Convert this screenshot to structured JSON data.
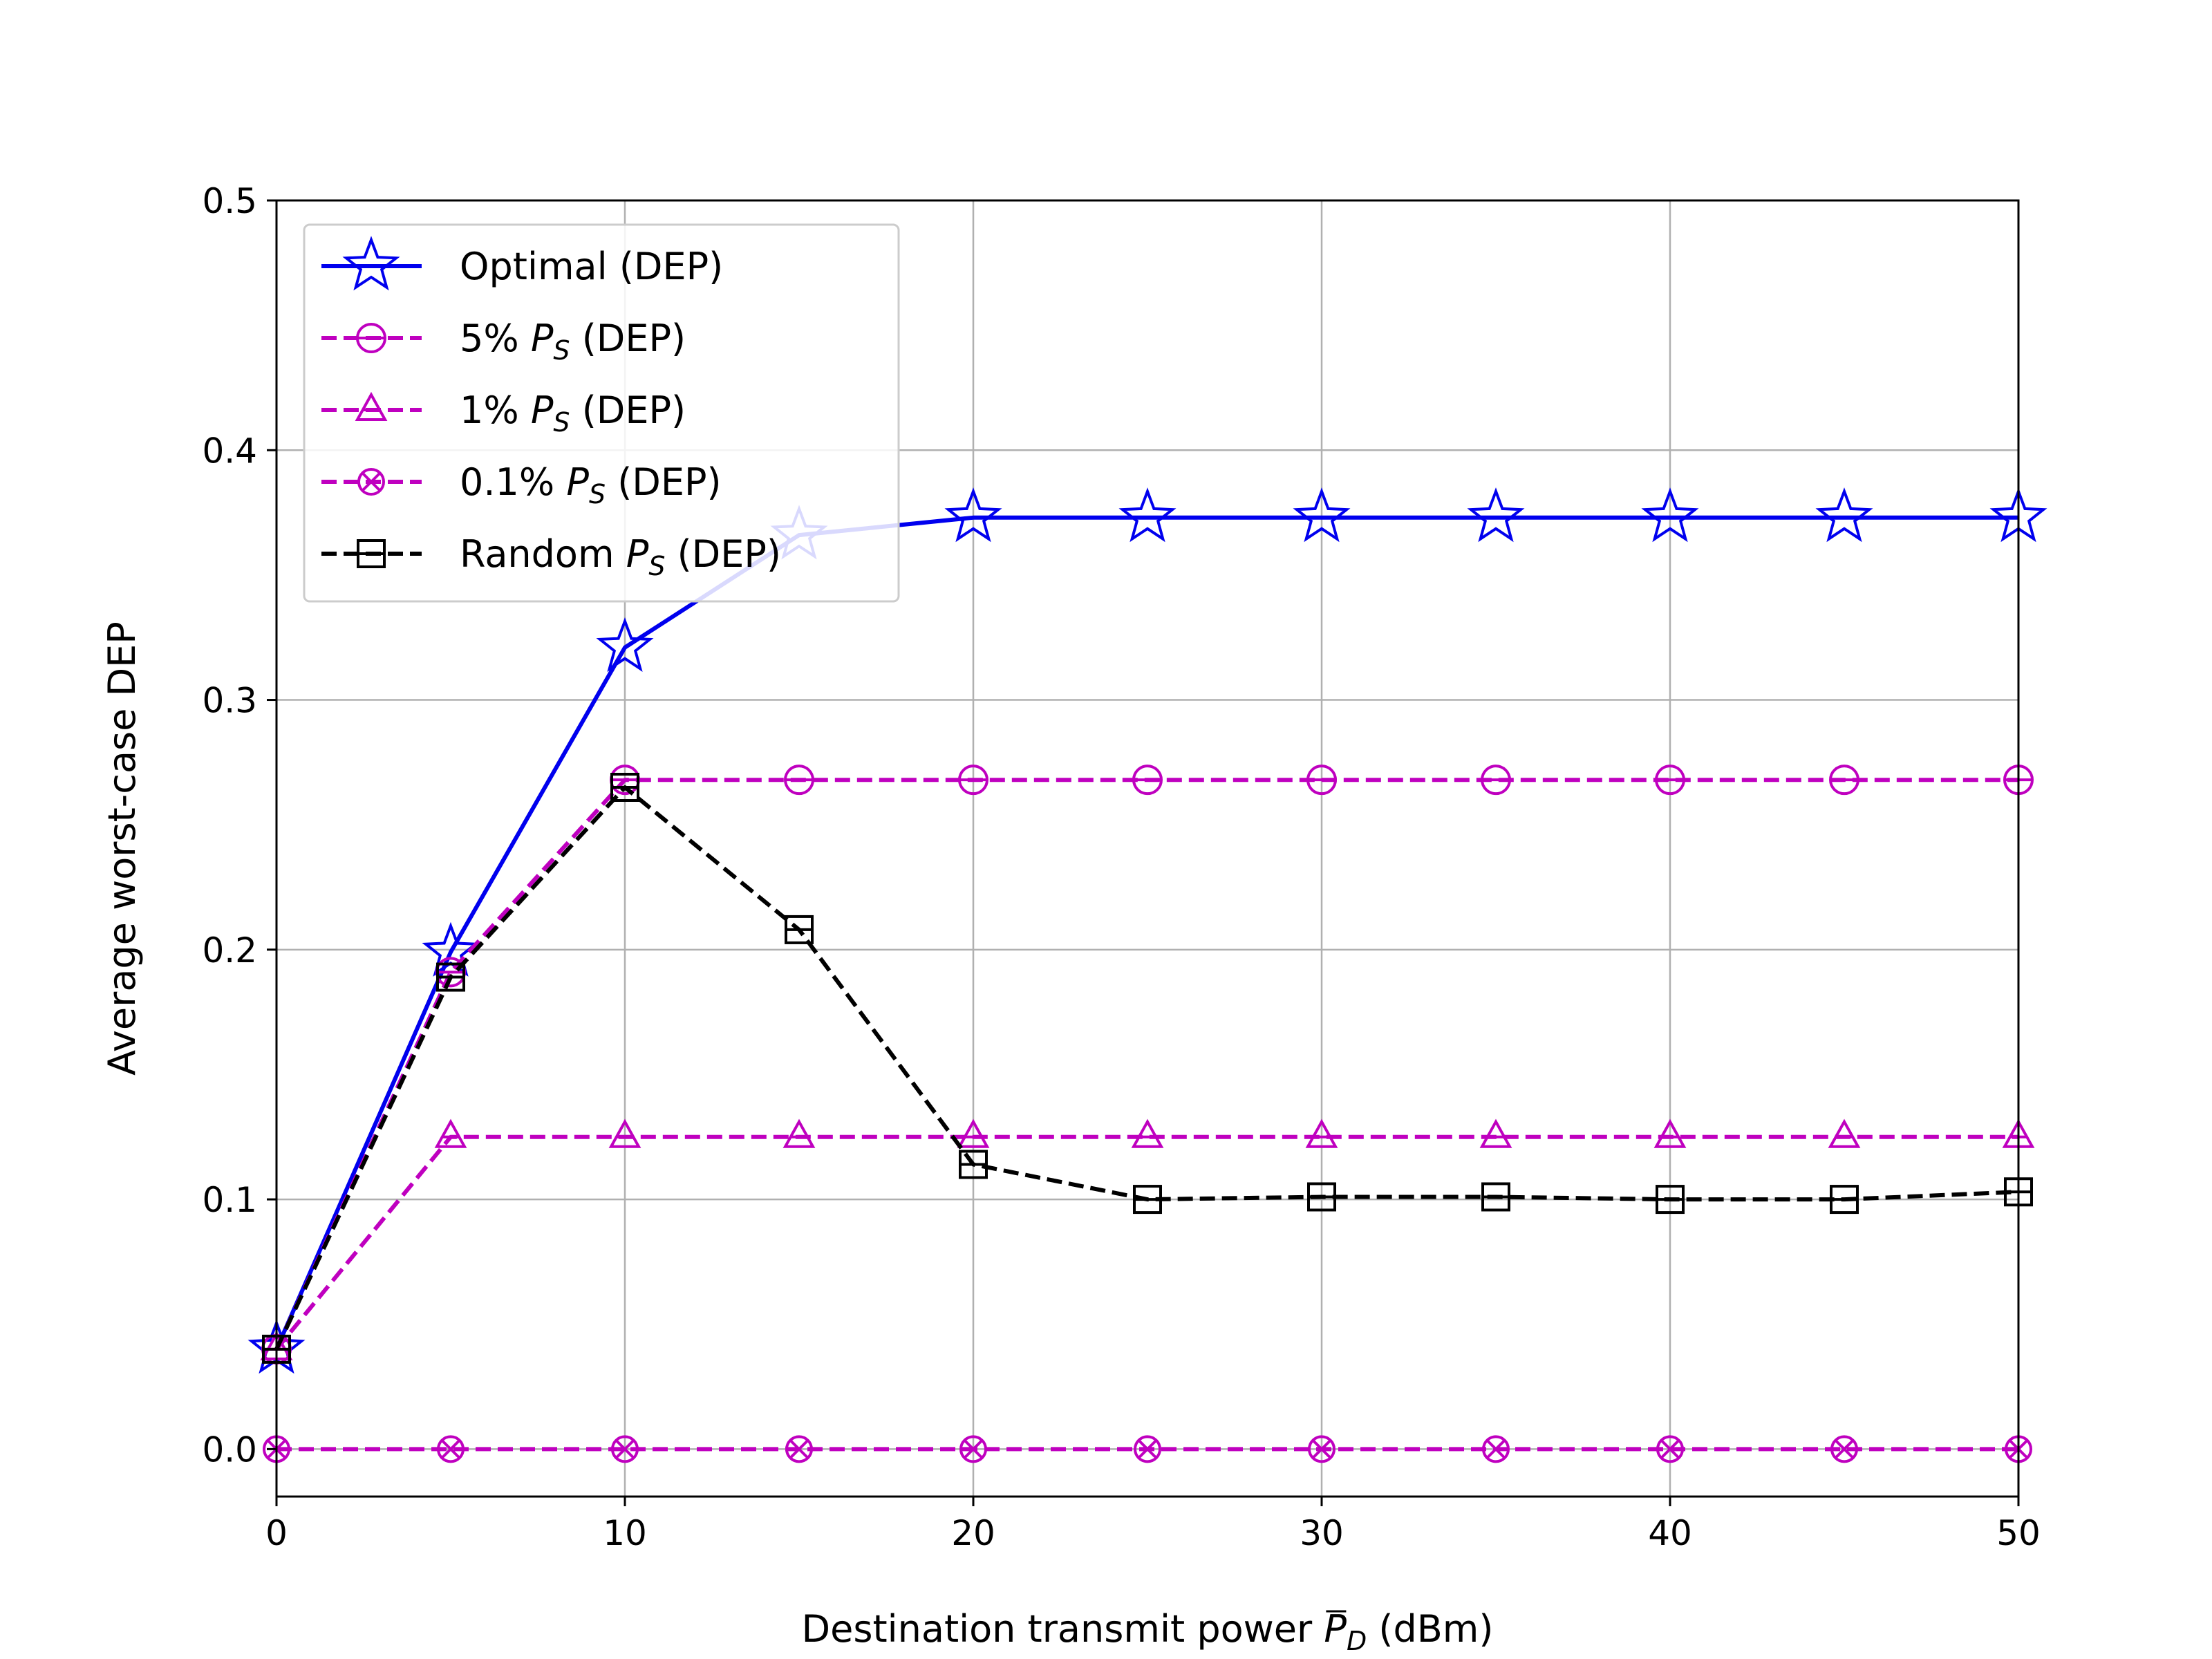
{
  "chart_data": {
    "type": "line",
    "xlabel": "Destination transmit power P̅D (dBm)",
    "xlabel_parts": {
      "prefix": "Destination transmit power ",
      "symbol": "P",
      "subscript": "D",
      "suffix": " (dBm)"
    },
    "ylabel": "Average worst-case DEP",
    "xlim": [
      0,
      50
    ],
    "ylim": [
      -0.019,
      0.5
    ],
    "xticks": [
      "0",
      "10",
      "20",
      "30",
      "40",
      "50"
    ],
    "yticks": [
      "0.0",
      "0.1",
      "0.2",
      "0.3",
      "0.4",
      "0.5"
    ],
    "grid": true,
    "legend_position": "top-left",
    "x": [
      0,
      5,
      10,
      15,
      20,
      25,
      30,
      35,
      40,
      45,
      50
    ],
    "series": [
      {
        "name": "Optimal (DEP)",
        "name_parts": {
          "prefix": "Optimal",
          "symbol": "",
          "subscript": "",
          "suffix": " (DEP)"
        },
        "color": "#0000ee",
        "dashed": false,
        "marker": "star",
        "values": [
          0.04,
          0.199,
          0.321,
          0.366,
          0.373,
          0.373,
          0.373,
          0.373,
          0.373,
          0.373,
          0.373
        ]
      },
      {
        "name": "5% PS (DEP)",
        "name_parts": {
          "prefix": "5% ",
          "symbol": "P",
          "subscript": "S",
          "suffix": " (DEP)"
        },
        "color": "#bf00bf",
        "dashed": true,
        "marker": "circle",
        "values": [
          0.04,
          0.191,
          0.268,
          0.268,
          0.268,
          0.268,
          0.268,
          0.268,
          0.268,
          0.268,
          0.268
        ]
      },
      {
        "name": "1% PS (DEP)",
        "name_parts": {
          "prefix": "1% ",
          "symbol": "P",
          "subscript": "S",
          "suffix": " (DEP)"
        },
        "color": "#bf00bf",
        "dashed": true,
        "marker": "triangle",
        "values": [
          0.04,
          0.125,
          0.125,
          0.125,
          0.125,
          0.125,
          0.125,
          0.125,
          0.125,
          0.125,
          0.125
        ]
      },
      {
        "name": "0.1% PS (DEP)",
        "name_parts": {
          "prefix": "0.1% ",
          "symbol": "P",
          "subscript": "S",
          "suffix": " (DEP)"
        },
        "color": "#bf00bf",
        "dashed": true,
        "marker": "xcircle",
        "values": [
          0.0,
          0.0,
          0.0,
          0.0,
          0.0,
          0.0,
          0.0,
          0.0,
          0.0,
          0.0,
          0.0
        ]
      },
      {
        "name": "Random PS (DEP)",
        "name_parts": {
          "prefix": "Random ",
          "symbol": "P",
          "subscript": "S",
          "suffix": " (DEP)"
        },
        "color": "#000000",
        "dashed": true,
        "marker": "square",
        "values": [
          0.04,
          0.189,
          0.265,
          0.208,
          0.114,
          0.1,
          0.101,
          0.101,
          0.1,
          0.1,
          0.103
        ]
      }
    ]
  }
}
